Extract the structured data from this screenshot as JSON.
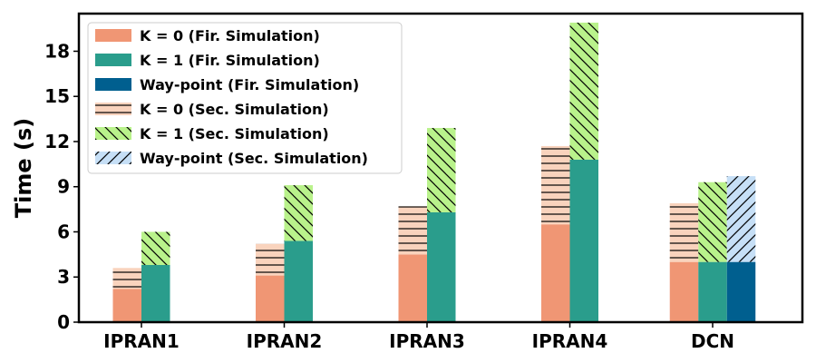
{
  "chart_data": {
    "type": "bar",
    "stacked": true,
    "categories": [
      "IPRAN1",
      "IPRAN2",
      "IPRAN3",
      "IPRAN4",
      "DCN"
    ],
    "ylabel": "Time (s)",
    "xlabel": "",
    "ylim": [
      0,
      20.5
    ],
    "yticks": [
      0,
      3,
      6,
      9,
      12,
      15,
      18
    ],
    "grid": false,
    "legend_position": "top-left",
    "groups": [
      {
        "name": "K = 0",
        "first": {
          "label": "K = 0 (Fir. Simulation)",
          "values": [
            2.2,
            3.1,
            4.5,
            6.5,
            4.0
          ],
          "color": "#f09674"
        },
        "second": {
          "label": "K = 0 (Sec. Simulation)",
          "values": [
            1.4,
            2.1,
            3.2,
            5.2,
            3.9
          ],
          "color": "#f9d3bd",
          "hatch": "horizontal"
        }
      },
      {
        "name": "K = 1",
        "first": {
          "label": "K = 1 (Fir. Simulation)",
          "values": [
            3.8,
            5.4,
            7.3,
            10.8,
            4.0
          ],
          "color": "#2a9d8c"
        },
        "second": {
          "label": "K = 1 (Sec. Simulation)",
          "values": [
            2.2,
            3.7,
            5.6,
            9.1,
            5.3
          ],
          "color": "#b9f28b",
          "hatch": "back-diagonal"
        }
      },
      {
        "name": "Way-point",
        "first": {
          "label": "Way-point (Fir. Simulation)",
          "values": [
            null,
            null,
            null,
            null,
            4.0
          ],
          "color": "#005f8f"
        },
        "second": {
          "label": "Way-point (Sec. Simulation)",
          "values": [
            null,
            null,
            null,
            null,
            5.7
          ],
          "color": "#c6dff6",
          "hatch": "forward-diagonal"
        }
      }
    ]
  }
}
